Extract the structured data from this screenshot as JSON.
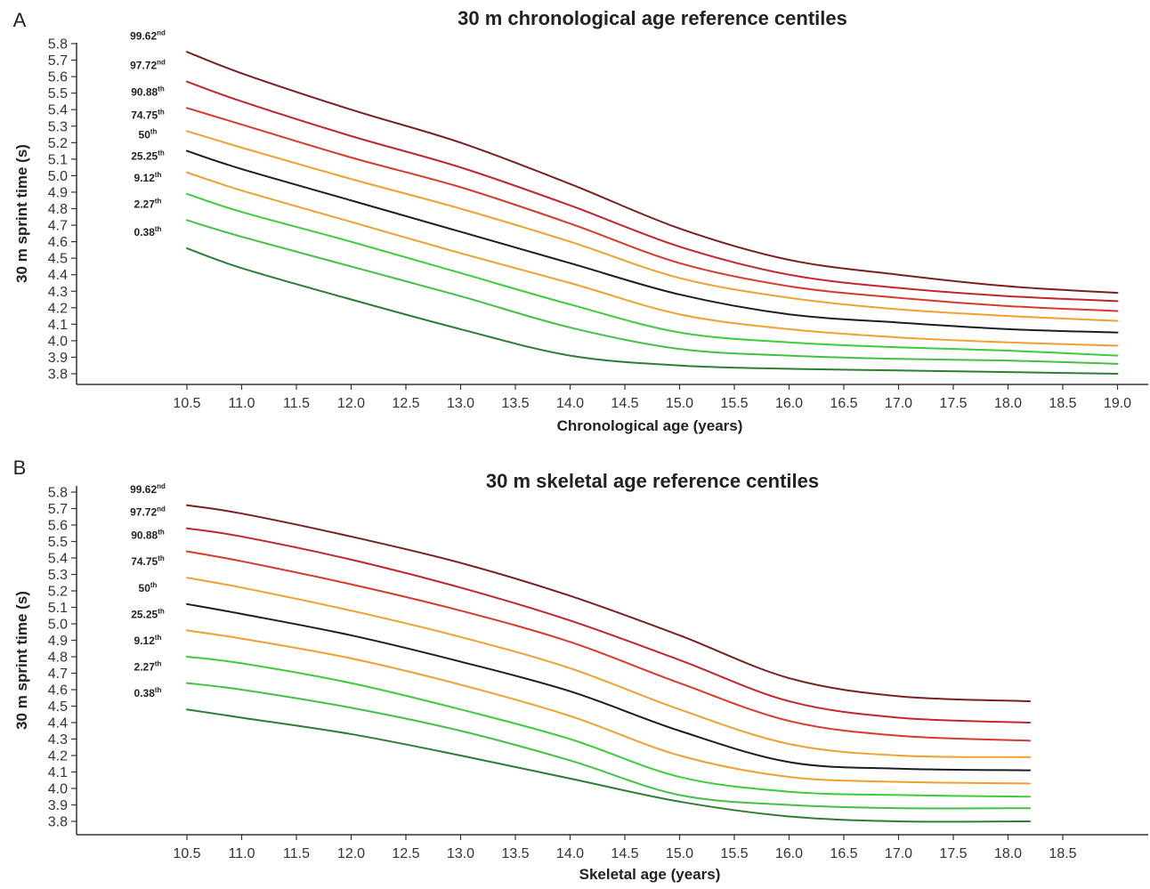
{
  "chart_data": [
    {
      "panel": "A",
      "type": "line",
      "title": "30 m chronological age reference centiles",
      "xlabel": "Chronological age (years)",
      "ylabel": "30 m sprint time (s)",
      "xlim": [
        10.5,
        19.0
      ],
      "ylim": [
        3.8,
        5.8
      ],
      "xticks": [
        "10.5",
        "11.0",
        "11.5",
        "12.0",
        "12.5",
        "13.0",
        "13.5",
        "14.0",
        "14.5",
        "15.0",
        "15.5",
        "16.0",
        "16.5",
        "17.0",
        "17.5",
        "18.0",
        "18.5",
        "19.0"
      ],
      "yticks": [
        "3.8",
        "3.9",
        "4.0",
        "4.1",
        "4.2",
        "4.3",
        "4.4",
        "4.5",
        "4.6",
        "4.7",
        "4.8",
        "4.9",
        "5.0",
        "5.1",
        "5.2",
        "5.3",
        "5.4",
        "5.5",
        "5.6",
        "5.7",
        "5.8"
      ],
      "x": [
        10.5,
        11.0,
        12.0,
        13.0,
        14.0,
        15.0,
        16.0,
        17.0,
        18.0,
        19.0
      ],
      "series": [
        {
          "label": "99.62",
          "suffix": "nd",
          "color": "#7a1f1f",
          "values": [
            5.75,
            5.62,
            5.4,
            5.2,
            4.95,
            4.68,
            4.49,
            4.4,
            4.33,
            4.29
          ]
        },
        {
          "label": "97.72",
          "suffix": "nd",
          "color": "#c0262b",
          "values": [
            5.57,
            5.45,
            5.24,
            5.05,
            4.82,
            4.57,
            4.4,
            4.32,
            4.27,
            4.24
          ]
        },
        {
          "label": "90.88",
          "suffix": "th",
          "color": "#d63a2e",
          "values": [
            5.41,
            5.31,
            5.11,
            4.93,
            4.71,
            4.47,
            4.33,
            4.26,
            4.21,
            4.18
          ]
        },
        {
          "label": "74.75",
          "suffix": "th",
          "color": "#f0a030",
          "values": [
            5.27,
            5.17,
            4.98,
            4.8,
            4.6,
            4.38,
            4.26,
            4.19,
            4.15,
            4.12
          ]
        },
        {
          "label": "50",
          "suffix": "th",
          "color": "#1c1c24",
          "values": [
            5.15,
            5.04,
            4.85,
            4.66,
            4.47,
            4.28,
            4.16,
            4.11,
            4.07,
            4.05
          ]
        },
        {
          "label": "25.25",
          "suffix": "th",
          "color": "#f0a030",
          "values": [
            5.02,
            4.91,
            4.72,
            4.53,
            4.35,
            4.16,
            4.07,
            4.02,
            3.99,
            3.97
          ]
        },
        {
          "label": "9.12",
          "suffix": "th",
          "color": "#3ccc3c",
          "values": [
            4.89,
            4.78,
            4.6,
            4.41,
            4.22,
            4.05,
            3.99,
            3.96,
            3.94,
            3.91
          ]
        },
        {
          "label": "2.27",
          "suffix": "th",
          "color": "#44c044",
          "values": [
            4.73,
            4.63,
            4.45,
            4.27,
            4.08,
            3.95,
            3.91,
            3.89,
            3.88,
            3.86
          ]
        },
        {
          "label": "0.38",
          "suffix": "th",
          "color": "#2e7d32",
          "values": [
            4.56,
            4.44,
            4.25,
            4.07,
            3.91,
            3.85,
            3.83,
            3.82,
            3.81,
            3.8
          ]
        }
      ]
    },
    {
      "panel": "B",
      "type": "line",
      "title": "30 m skeletal age reference centiles",
      "xlabel": "Skeletal age (years)",
      "ylabel": "30 m sprint time (s)",
      "xlim": [
        10.5,
        18.5
      ],
      "ylim": [
        3.8,
        5.8
      ],
      "xticks": [
        "10.5",
        "11.0",
        "11.5",
        "12.0",
        "12.5",
        "13.0",
        "13.5",
        "14.0",
        "14.5",
        "15.0",
        "15.5",
        "16.0",
        "16.5",
        "17.0",
        "17.5",
        "18.0",
        "18.5"
      ],
      "yticks": [
        "3.8",
        "3.9",
        "4.0",
        "4.1",
        "4.2",
        "4.3",
        "4.4",
        "4.5",
        "4.6",
        "4.7",
        "4.8",
        "4.9",
        "5.0",
        "5.1",
        "5.2",
        "5.3",
        "5.4",
        "5.5",
        "5.6",
        "5.7",
        "5.8"
      ],
      "x": [
        10.5,
        11.0,
        12.0,
        13.0,
        14.0,
        15.0,
        16.0,
        17.0,
        18.2
      ],
      "series": [
        {
          "label": "99.62",
          "suffix": "nd",
          "color": "#7a1f1f",
          "values": [
            5.72,
            5.67,
            5.53,
            5.37,
            5.17,
            4.93,
            4.67,
            4.56,
            4.53
          ]
        },
        {
          "label": "97.72",
          "suffix": "nd",
          "color": "#c0262b",
          "values": [
            5.58,
            5.53,
            5.39,
            5.22,
            5.02,
            4.78,
            4.53,
            4.43,
            4.4
          ]
        },
        {
          "label": "90.88",
          "suffix": "th",
          "color": "#d63a2e",
          "values": [
            5.44,
            5.38,
            5.24,
            5.08,
            4.89,
            4.64,
            4.41,
            4.32,
            4.29
          ]
        },
        {
          "label": "74.75",
          "suffix": "th",
          "color": "#f0a030",
          "values": [
            5.28,
            5.22,
            5.08,
            4.92,
            4.73,
            4.48,
            4.27,
            4.2,
            4.19
          ]
        },
        {
          "label": "50",
          "suffix": "th",
          "color": "#1c1c24",
          "values": [
            5.12,
            5.06,
            4.93,
            4.77,
            4.59,
            4.35,
            4.16,
            4.12,
            4.11
          ]
        },
        {
          "label": "25.25",
          "suffix": "th",
          "color": "#f0a030",
          "values": [
            4.96,
            4.91,
            4.79,
            4.63,
            4.44,
            4.2,
            4.07,
            4.04,
            4.03
          ]
        },
        {
          "label": "9.12",
          "suffix": "th",
          "color": "#3ccc3c",
          "values": [
            4.8,
            4.76,
            4.64,
            4.48,
            4.3,
            4.07,
            3.98,
            3.96,
            3.95
          ]
        },
        {
          "label": "2.27",
          "suffix": "th",
          "color": "#44c044",
          "values": [
            4.64,
            4.6,
            4.49,
            4.35,
            4.17,
            3.96,
            3.9,
            3.88,
            3.88
          ]
        },
        {
          "label": "0.38",
          "suffix": "th",
          "color": "#2e7d32",
          "values": [
            4.48,
            4.43,
            4.33,
            4.2,
            4.06,
            3.92,
            3.83,
            3.8,
            3.8
          ]
        }
      ]
    }
  ]
}
